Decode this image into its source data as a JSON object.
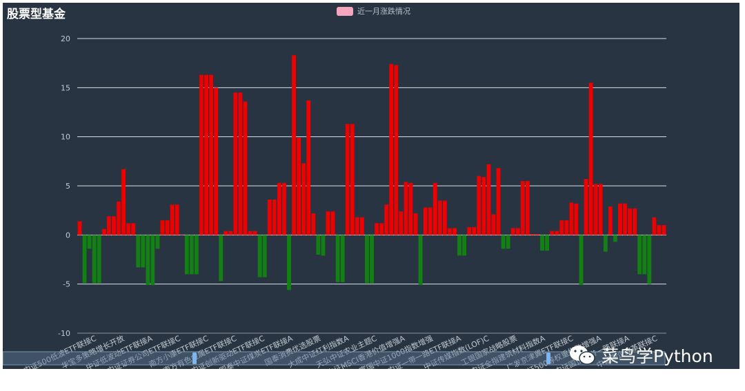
{
  "chart_data": {
    "type": "bar",
    "title": "股票型基金",
    "legend": {
      "label": "近一月涨跌情况",
      "color": "#f5a5bc",
      "position": "top-center"
    },
    "positive_color": "#ee0000",
    "negative_color": "#138013",
    "ylim": [
      -10,
      20
    ],
    "yticks": [
      -10,
      -5,
      0,
      5,
      10,
      15,
      20
    ],
    "grid": true,
    "visible_category_labels": [
      "中证500低波ETF联接C",
      "华宝多策略增长开放",
      "中证低波动ETF联接A",
      "中证证券公司ETF联接C",
      "南方小康ETF联接C",
      "南方有色金属ETF联接C",
      "中证创新驱动ETF联接C",
      "国泰中证煤炭ETF联接A",
      "国泰消费优选股票",
      "大成中证红利指数A",
      "天弘中证农业主题C",
      "中证MSCI香港价值增强A",
      "富国中证1000指数增强",
      "中证一带一路ETF联接A",
      "中证传媒指数(LOF)C",
      "工银国家战略股票",
      "中证全指建筑材料指数A",
      "广发京津冀ETF联接C",
      "中证500等权重指数增强A",
      "中证国企一带一路联接A",
      "中证国企改革联接C"
    ],
    "values": [
      1.4,
      -4.9,
      -1.4,
      -4.9,
      -4.9,
      0.6,
      1.9,
      1.9,
      3.4,
      6.7,
      1.2,
      1.2,
      -3.3,
      -3.3,
      -5.1,
      -5.1,
      -1.4,
      1.5,
      1.5,
      3.1,
      3.1,
      0,
      -4.0,
      -4.0,
      -4.0,
      16.3,
      16.3,
      16.3,
      15.0,
      -4.7,
      0.4,
      0.4,
      14.5,
      14.5,
      13.6,
      0.4,
      0.4,
      -4.3,
      -4.3,
      3.6,
      3.6,
      5.3,
      5.3,
      -5.6,
      18.3,
      9.9,
      7.3,
      13.7,
      2.2,
      -2.0,
      -2.1,
      2.4,
      2.4,
      -4.8,
      -4.8,
      11.3,
      11.3,
      1.8,
      1.8,
      -4.9,
      -4.9,
      1.2,
      1.2,
      3.1,
      17.4,
      17.3,
      2.4,
      5.4,
      5.3,
      2.2,
      -5.1,
      2.8,
      2.8,
      5.3,
      3.5,
      3.5,
      0.7,
      0.7,
      -2.1,
      -2.1,
      0.8,
      0.8,
      6.0,
      5.9,
      7.2,
      2.1,
      6.8,
      -1.4,
      -1.4,
      0.7,
      0.7,
      5.5,
      5.5,
      0.1,
      0.1,
      -1.6,
      -1.6,
      0.4,
      0.4,
      1.5,
      1.5,
      3.3,
      3.2,
      -5.1,
      5.7,
      15.5,
      5.2,
      5.2,
      -1.7,
      2.9,
      -0.7,
      3.2,
      3.2,
      2.7,
      2.7,
      -4.0,
      -4.0,
      -5.0,
      1.8,
      1.0,
      1.0
    ]
  },
  "watermark": {
    "text": "菜鸟学Python",
    "icon": "wechat-icon"
  }
}
